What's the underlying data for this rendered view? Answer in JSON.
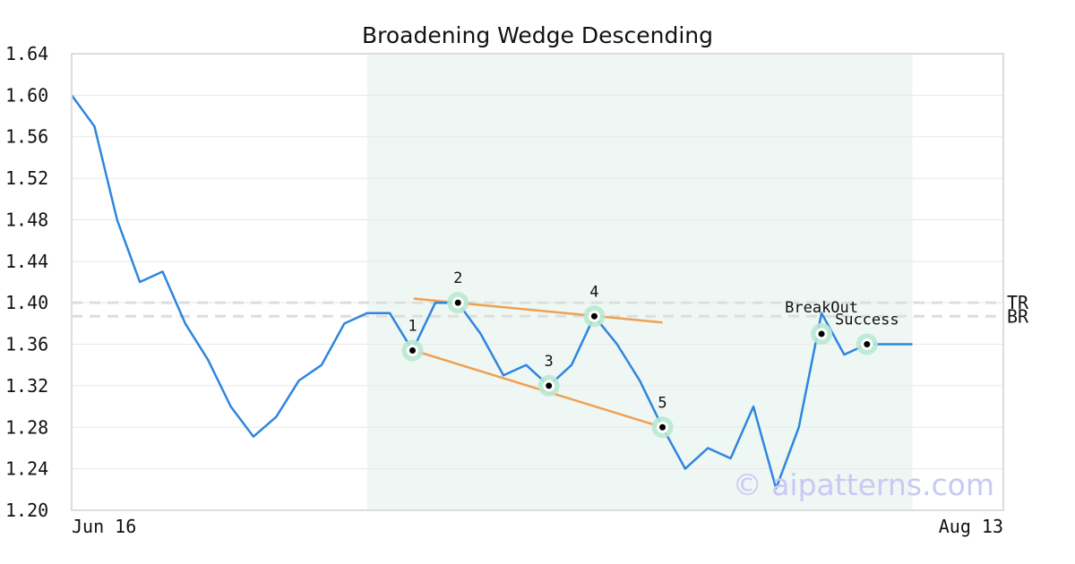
{
  "chart_data": {
    "type": "line",
    "title": "Broadening Wedge Descending",
    "xlabel": "",
    "ylabel": "",
    "ylim": [
      1.2,
      1.64
    ],
    "yticks": [
      1.2,
      1.24,
      1.28,
      1.32,
      1.36,
      1.4,
      1.44,
      1.48,
      1.52,
      1.56,
      1.6,
      1.64
    ],
    "grid": true,
    "x_range": [
      0,
      41
    ],
    "x_tick_labels": [
      {
        "x": 0,
        "label": "Jun 16"
      },
      {
        "x": 41,
        "label": "Aug 13"
      }
    ],
    "series": [
      {
        "color": "#2e86de",
        "points": [
          [
            0,
            1.6
          ],
          [
            1,
            1.57
          ],
          [
            2,
            1.48
          ],
          [
            3,
            1.42
          ],
          [
            4,
            1.43
          ],
          [
            5,
            1.38
          ],
          [
            6,
            1.345
          ],
          [
            7,
            1.3
          ],
          [
            8,
            1.271
          ],
          [
            9,
            1.29
          ],
          [
            10,
            1.325
          ],
          [
            11,
            1.34
          ],
          [
            12,
            1.38
          ],
          [
            13,
            1.39
          ],
          [
            14,
            1.39
          ],
          [
            15,
            1.354
          ],
          [
            16,
            1.4
          ],
          [
            17,
            1.4
          ],
          [
            18,
            1.37
          ],
          [
            19,
            1.33
          ],
          [
            20,
            1.34
          ],
          [
            21,
            1.32
          ],
          [
            22,
            1.34
          ],
          [
            23,
            1.387
          ],
          [
            24,
            1.36
          ],
          [
            25,
            1.325
          ],
          [
            26,
            1.28
          ],
          [
            27,
            1.24
          ],
          [
            28,
            1.26
          ],
          [
            29,
            1.25
          ],
          [
            30,
            1.3
          ],
          [
            31,
            1.221
          ],
          [
            32,
            1.28
          ],
          [
            33,
            1.39
          ],
          [
            34,
            1.35
          ],
          [
            35,
            1.36
          ],
          [
            36,
            1.36
          ],
          [
            37,
            1.36
          ]
        ]
      }
    ],
    "pattern_region": {
      "x_start": 13,
      "x_end": 37,
      "color": "#eef7f3"
    },
    "trend_lines": [
      {
        "color": "#f0a050",
        "from": [
          15.05,
          1.404
        ],
        "to": [
          26.0,
          1.381
        ]
      },
      {
        "color": "#f0a050",
        "from": [
          15.05,
          1.354
        ],
        "to": [
          26.0,
          1.28
        ]
      }
    ],
    "reference_lines": [
      {
        "label": "TR",
        "y": 1.4,
        "color": "#dddddd"
      },
      {
        "label": "BR",
        "y": 1.387,
        "color": "#dddddd"
      }
    ],
    "markers": [
      {
        "label": "1",
        "x": 15,
        "y": 1.354,
        "label_pos": "above"
      },
      {
        "label": "2",
        "x": 17,
        "y": 1.4,
        "label_pos": "above"
      },
      {
        "label": "3",
        "x": 21,
        "y": 1.32,
        "label_pos": "above"
      },
      {
        "label": "4",
        "x": 23,
        "y": 1.387,
        "label_pos": "above"
      },
      {
        "label": "5",
        "x": 26,
        "y": 1.28,
        "label_pos": "above"
      },
      {
        "label": "BreakOut",
        "x": 33,
        "y": 1.37,
        "label_pos": "above-offset"
      },
      {
        "label": "Success",
        "x": 35,
        "y": 1.36,
        "label_pos": "above"
      }
    ],
    "watermark": "© aipatterns.com"
  }
}
